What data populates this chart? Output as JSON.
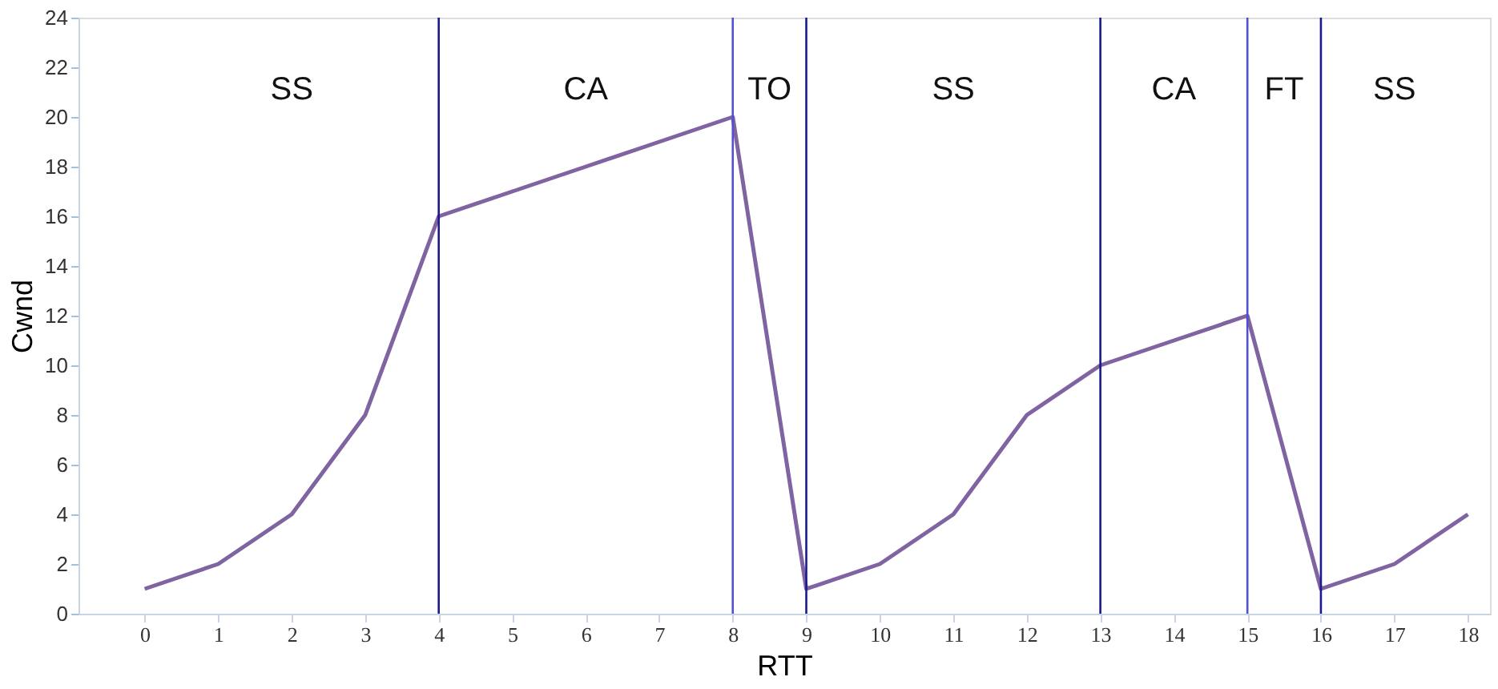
{
  "chart_data": {
    "type": "line",
    "xlabel": "RTT",
    "ylabel": "Cwnd",
    "x": [
      0,
      1,
      2,
      3,
      4,
      5,
      6,
      7,
      8,
      9,
      10,
      11,
      12,
      13,
      14,
      15,
      16,
      17,
      18
    ],
    "series": [
      {
        "color": "#8064a2",
        "values": [
          1,
          2,
          4,
          8,
          16,
          17,
          18,
          19,
          20,
          1,
          2,
          4,
          8,
          10,
          11,
          12,
          1,
          2,
          4
        ]
      }
    ],
    "xlim": [
      -0.9,
      18.3
    ],
    "xticks": [
      0,
      1,
      2,
      3,
      4,
      5,
      6,
      7,
      8,
      9,
      10,
      11,
      12,
      13,
      14,
      15,
      16,
      17,
      18
    ],
    "ylim": [
      0,
      24
    ],
    "yticks": [
      0,
      2,
      4,
      6,
      8,
      10,
      12,
      14,
      16,
      18,
      20,
      22,
      24
    ],
    "grid": false,
    "marker": "none",
    "line_style": "solid",
    "ref_lines": [
      {
        "axis": "x",
        "value": 4,
        "color": "#1a1a8c"
      },
      {
        "axis": "x",
        "value": 8,
        "color": "#5050d0"
      },
      {
        "axis": "x",
        "value": 9,
        "color": "#1a1a8c"
      },
      {
        "axis": "x",
        "value": 13,
        "color": "#1a1a8c"
      },
      {
        "axis": "x",
        "value": 15,
        "color": "#5050d0"
      },
      {
        "axis": "x",
        "value": 16,
        "color": "#1a1a8c"
      }
    ],
    "annotations": [
      "SS",
      "CA",
      "TO",
      "SS",
      "CA",
      "FT",
      "SS"
    ]
  }
}
